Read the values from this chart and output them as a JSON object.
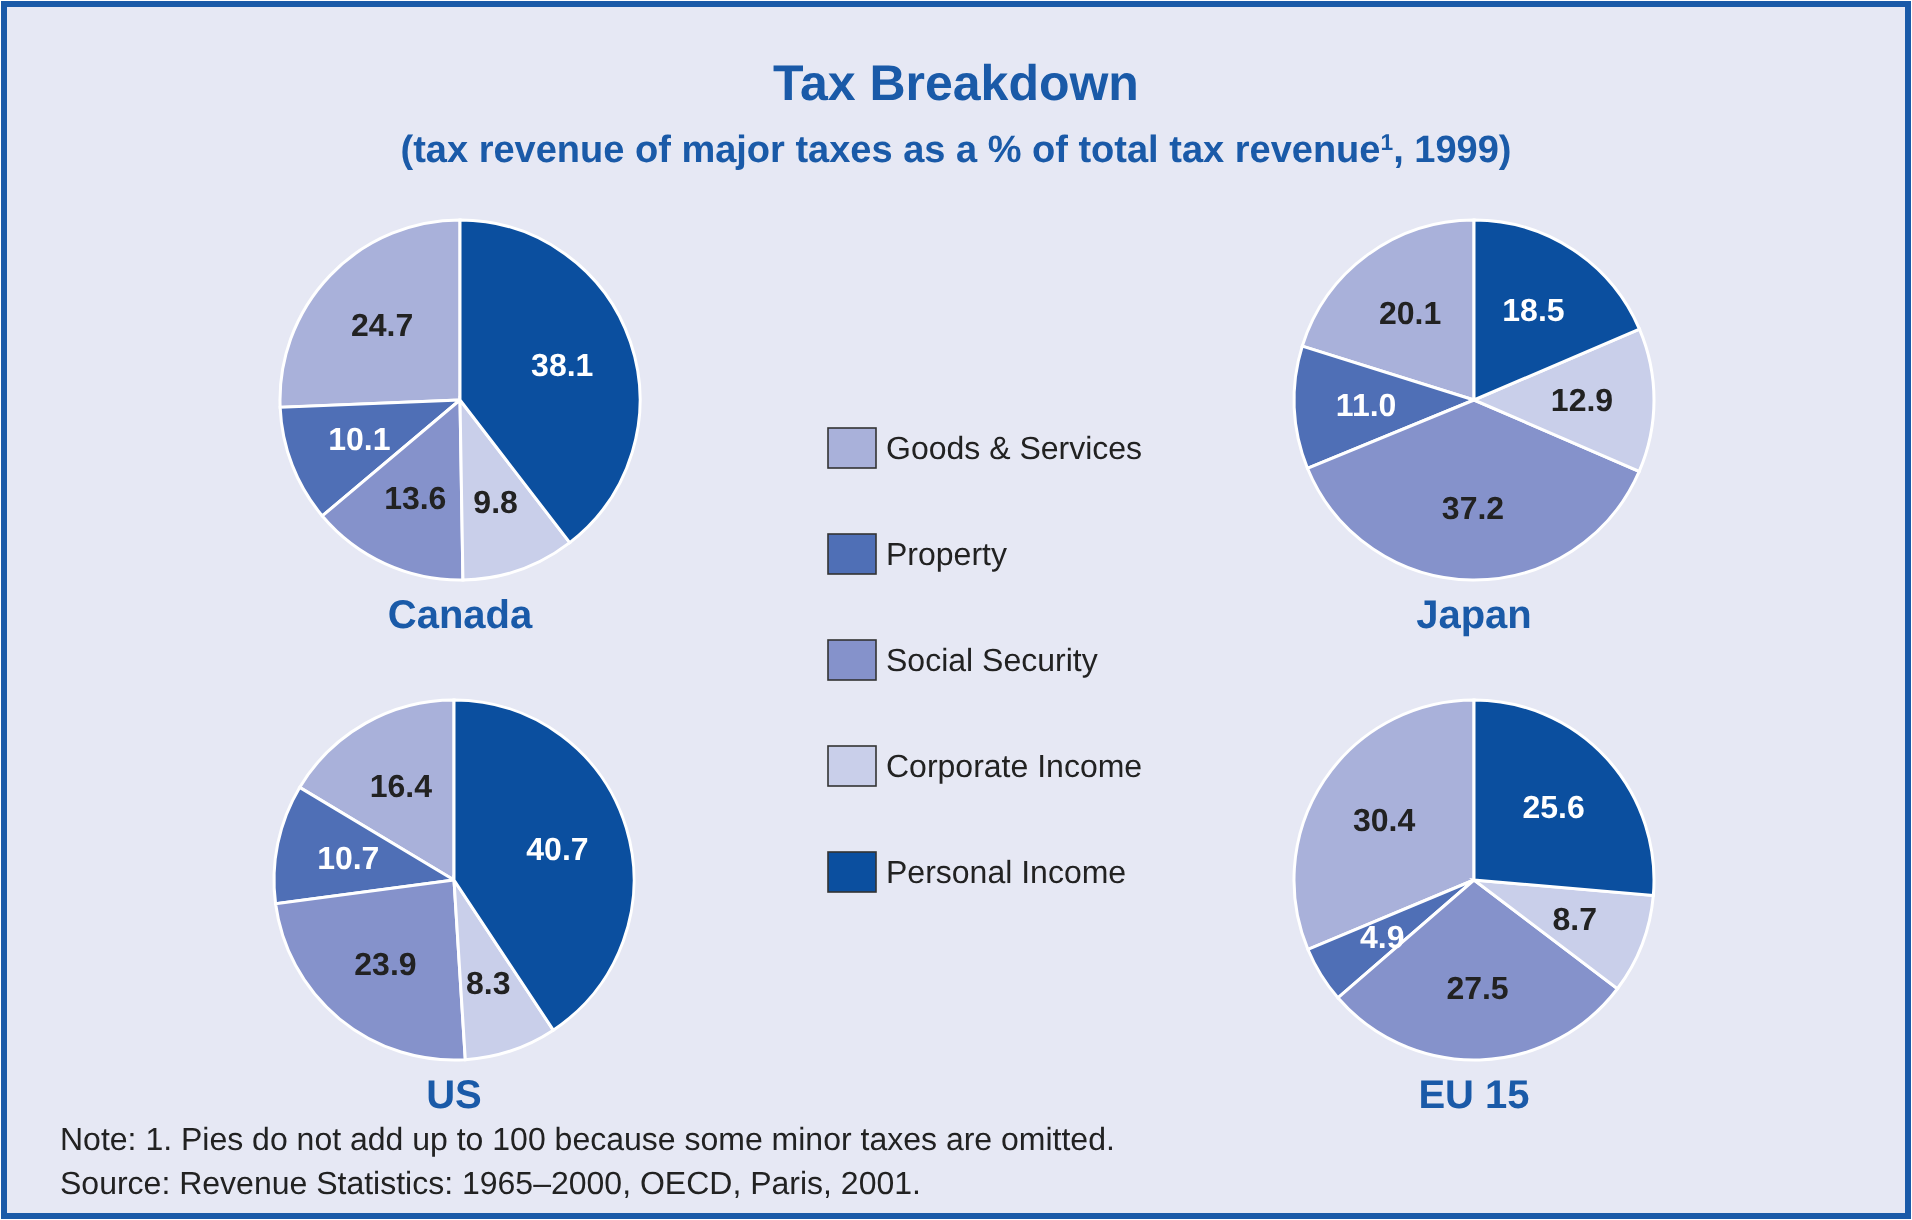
{
  "chart_data": [
    {
      "type": "pie",
      "title": "Tax Breakdown",
      "subtitle": "(tax revenue of major taxes as a % of total tax revenue$^{1}$, 1999)",
      "xlabel": "Canada",
      "legend": "right",
      "annotations": [
        "Note: 1. Pies do not add up to 100 because some minor taxes are omitted.",
        "Source: Revenue Statistics: 1965–2000, OECD, Paris, 2001."
      ],
      "categories": [
        "Goods & Services",
        "Property",
        "Social Security",
        "Corporate Income",
        "Personal Income"
      ],
      "colors": [
        "#a9b1da",
        "#4f6fb6",
        "#8592cb",
        "#c9cfea",
        "#0b4f9f"
      ],
      "values": [
        24.7,
        10.1,
        13.6,
        9.8,
        38.1
      ],
      "value_labels": [
        "24.7",
        "10.1",
        "13.6",
        "9.8",
        "38.1"
      ]
    },
    {
      "type": "pie",
      "xlabel": "Japan",
      "categories": [
        null,
        null,
        null,
        null,
        null
      ],
      "colors": [
        "#a9b1da",
        "#4f6fb6",
        "#8592cb",
        "#c9cfea",
        "#0b4f9f"
      ],
      "values": [
        20.1,
        11.0,
        37.2,
        12.9,
        18.5
      ],
      "value_labels": [
        "20.1",
        "11.0",
        "37.2",
        "12.9",
        "18.5"
      ]
    },
    {
      "type": "pie",
      "xlabel": "US",
      "categories": [
        null,
        null,
        null,
        null,
        null
      ],
      "colors": [
        "#a9b1da",
        "#4f6fb6",
        "#8592cb",
        "#c9cfea",
        "#0b4f9f"
      ],
      "values": [
        16.4,
        10.7,
        23.9,
        8.3,
        40.7
      ],
      "value_labels": [
        "16.4",
        "10.7",
        "23.9",
        "8.3",
        "40.7"
      ]
    },
    {
      "type": "pie",
      "xlabel": "EU 15",
      "categories": [
        null,
        null,
        null,
        null,
        null
      ],
      "colors": [
        "#a9b1da",
        "#4f6fb6",
        "#8592cb",
        "#c9cfea",
        "#0b4f9f"
      ],
      "values": [
        30.4,
        4.9,
        27.5,
        8.7,
        25.6
      ],
      "value_labels": [
        "30.4",
        "4.9",
        "27.5",
        "8.7",
        "25.6"
      ]
    }
  ]
}
